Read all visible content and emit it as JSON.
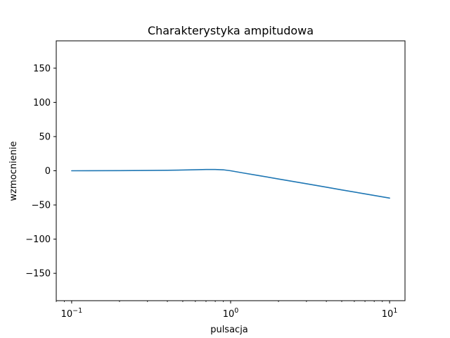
{
  "chart_data": {
    "type": "line",
    "title": "Charakterystyka ampitudowa",
    "xlabel": "pulsacja",
    "ylabel": "wzmocnienie",
    "xscale": "log",
    "xlim": [
      0.08,
      12.5
    ],
    "ylim": [
      -190,
      190
    ],
    "x_ticks": [
      {
        "value": 0.1,
        "base": "10",
        "exp": "−1"
      },
      {
        "value": 1,
        "base": "10",
        "exp": "0"
      },
      {
        "value": 10,
        "base": "10",
        "exp": "1"
      }
    ],
    "y_ticks": [
      {
        "value": 150,
        "label": "150"
      },
      {
        "value": 100,
        "label": "100"
      },
      {
        "value": 50,
        "label": "50"
      },
      {
        "value": 0,
        "label": "0"
      },
      {
        "value": -50,
        "label": "−50"
      },
      {
        "value": -100,
        "label": "−100"
      },
      {
        "value": -150,
        "label": "−150"
      }
    ],
    "grid": false,
    "series": [
      {
        "color": "#1f77b4",
        "x": [
          0.1,
          0.2,
          0.3,
          0.4,
          0.5,
          0.6,
          0.7,
          0.8,
          0.9,
          1.0,
          1.2,
          1.5,
          2,
          3,
          4,
          5,
          7,
          10
        ],
        "y": [
          0.0,
          0.2,
          0.4,
          0.7,
          1.1,
          1.5,
          1.9,
          1.9,
          1.4,
          0.0,
          -3.2,
          -7.0,
          -12.0,
          -19.0,
          -24.0,
          -28.0,
          -33.8,
          -40.0
        ]
      }
    ]
  }
}
